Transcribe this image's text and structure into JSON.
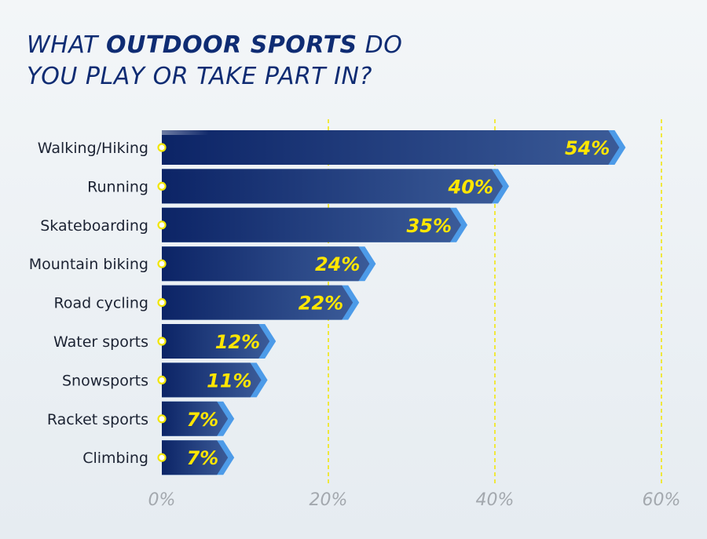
{
  "title": {
    "line1_pre": "WHAT ",
    "line1_em": "OUTDOOR SPORTS",
    "line1_post": " DO",
    "line2": "YOU PLAY OR TAKE PART IN?"
  },
  "chart_data": {
    "type": "bar",
    "orientation": "horizontal",
    "title": "WHAT OUTDOOR SPORTS DO YOU PLAY OR TAKE PART IN?",
    "categories": [
      "Walking/Hiking",
      "Running",
      "Skateboarding",
      "Mountain biking",
      "Road cycling",
      "Water sports",
      "Snowsports",
      "Racket sports",
      "Climbing"
    ],
    "values": [
      54,
      40,
      35,
      24,
      22,
      12,
      11,
      7,
      7
    ],
    "value_labels": [
      "54%",
      "40%",
      "35%",
      "24%",
      "22%",
      "12%",
      "11%",
      "7%",
      "7%"
    ],
    "xlim": [
      0,
      60
    ],
    "xticks": [
      0,
      20,
      40,
      60
    ],
    "xtick_labels": [
      "0%",
      "20%",
      "40%",
      "60%"
    ],
    "grid": true,
    "colors": {
      "bar_dark": "#0c2466",
      "bar_light": "#3b5b98",
      "bar_edge": "#4d9be8",
      "value_text": "#ffe600",
      "gridline": "#f2e600",
      "marker": "#f2e600",
      "title": "#0f2c73"
    }
  }
}
